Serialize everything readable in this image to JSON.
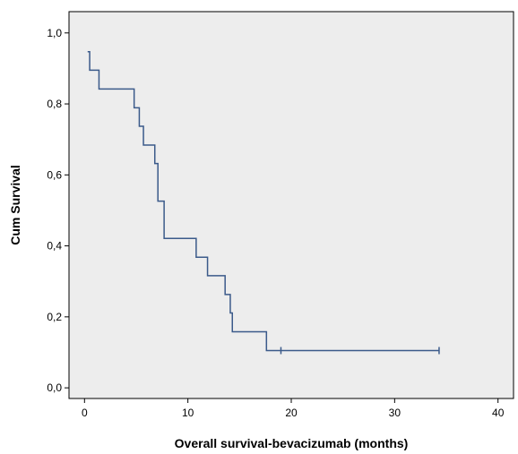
{
  "chart_data": {
    "type": "line",
    "subtype": "kaplan-meier step",
    "title": "",
    "xlabel": "Overall survival-bevacizumab (months)",
    "ylabel": "Cum Survival",
    "xlim": [
      -1.5,
      41.5
    ],
    "ylim": [
      -0.03,
      1.06
    ],
    "x_ticks": [
      0,
      10,
      20,
      30,
      40
    ],
    "x_tick_labels": [
      "0",
      "10",
      "20",
      "30",
      "40"
    ],
    "y_ticks": [
      0.0,
      0.2,
      0.4,
      0.6,
      0.8,
      1.0
    ],
    "y_tick_labels": [
      "0,0",
      "0,2",
      "0,4",
      "0,6",
      "0,8",
      "1,0"
    ],
    "grid": false,
    "background_color": "#ededed",
    "series": [
      {
        "color": "#3b5a8a",
        "points": [
          [
            0.3,
            0.947
          ],
          [
            0.5,
            0.895
          ],
          [
            1.4,
            0.842
          ],
          [
            4.8,
            0.789
          ],
          [
            5.3,
            0.737
          ],
          [
            5.7,
            0.684
          ],
          [
            6.8,
            0.632
          ],
          [
            7.1,
            0.526
          ],
          [
            7.7,
            0.421
          ],
          [
            10.8,
            0.368
          ],
          [
            11.9,
            0.316
          ],
          [
            13.6,
            0.263
          ],
          [
            14.1,
            0.211
          ],
          [
            14.3,
            0.158
          ],
          [
            17.6,
            0.105
          ],
          [
            34.3,
            0.105
          ]
        ],
        "censored": [
          [
            19.0,
            0.105
          ],
          [
            34.3,
            0.105
          ]
        ]
      }
    ]
  }
}
